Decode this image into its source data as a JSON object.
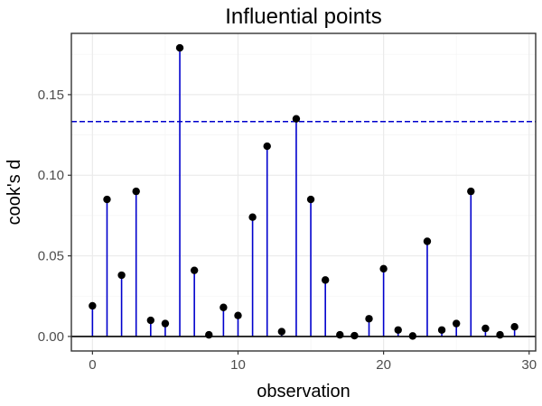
{
  "chart_data": {
    "type": "stem",
    "title": "Influential points",
    "xlabel": "observation",
    "ylabel": "cook's d",
    "xlim": [
      -1.45,
      30.45
    ],
    "ylim": [
      -0.009,
      0.188
    ],
    "x_ticks": [
      0,
      10,
      20,
      30
    ],
    "x_tick_labels": [
      "0",
      "10",
      "20",
      "30"
    ],
    "y_ticks": [
      0.0,
      0.05,
      0.1,
      0.15
    ],
    "y_tick_labels": [
      "0.00",
      "0.05",
      "0.10",
      "0.15"
    ],
    "threshold": 0.1333,
    "grid": true,
    "legend": "none",
    "x": [
      0,
      1,
      2,
      3,
      4,
      5,
      6,
      7,
      8,
      9,
      10,
      11,
      12,
      13,
      14,
      15,
      16,
      17,
      18,
      19,
      20,
      21,
      22,
      23,
      24,
      25,
      26,
      27,
      28,
      29
    ],
    "values": [
      0.019,
      0.085,
      0.038,
      0.09,
      0.01,
      0.008,
      0.179,
      0.041,
      0.001,
      0.018,
      0.013,
      0.074,
      0.118,
      0.003,
      0.135,
      0.085,
      0.035,
      0.001,
      0.0005,
      0.011,
      0.042,
      0.004,
      0.0003,
      0.059,
      0.004,
      0.008,
      0.09,
      0.005,
      0.001,
      0.006
    ],
    "colors": {
      "stem": "#0000cd",
      "point": "#000000",
      "threshold": "#0000cd",
      "baseline": "#000000",
      "grid_major": "#ebebeb",
      "grid_minor": "#f5f5f5",
      "panel_border": "#333333"
    }
  }
}
